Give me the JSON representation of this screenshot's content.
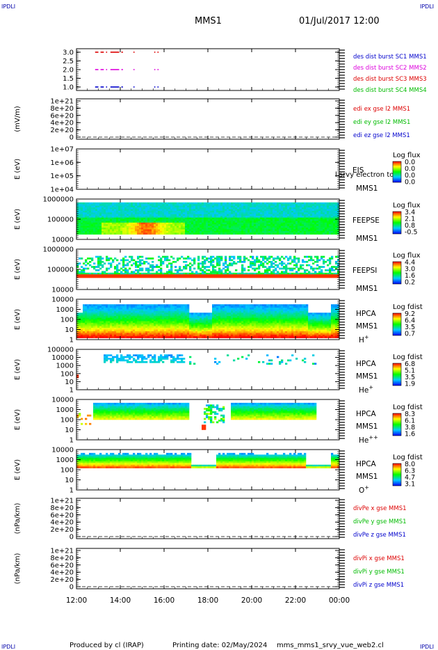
{
  "corner_label": "IPDLI",
  "header": {
    "mission": "MMS1",
    "datetime": "01/Jul/2017 12:00"
  },
  "footer": {
    "produced_by": "Produced by cl (IRAP)",
    "printing_date": "Printing date: 02/May/2024",
    "file": "mms_mms1_srvy_vue_web2.cl"
  },
  "colors": {
    "red": "#dd0000",
    "magenta": "#dd00dd",
    "green": "#00bb00",
    "blue": "#0000cc"
  },
  "chart_data": {
    "type": "multi-panel time series",
    "x": {
      "ticks": [
        "12:00",
        "14:00",
        "16:00",
        "18:00",
        "20:00",
        "22:00",
        "00:00"
      ],
      "range_hours": [
        12,
        24
      ]
    },
    "panels": [
      {
        "id": "burst",
        "kind": "flags",
        "ylabel": "",
        "yticks": [
          "3.0",
          "2.5",
          "2.0",
          "1.5",
          "1.0"
        ],
        "legend": [
          {
            "text": "des dist burst SC1 MMS1",
            "color": "blue"
          },
          {
            "text": "des dist burst SC2 MMS2",
            "color": "magenta"
          },
          {
            "text": "des dist burst SC3 MMS3",
            "color": "red"
          },
          {
            "text": "des dist burst SC4 MMS4",
            "color": "green"
          }
        ],
        "intervals_hours": [
          [
            12.85,
            13.0
          ],
          [
            13.1,
            13.25
          ],
          [
            13.35,
            13.4
          ],
          [
            13.55,
            13.95
          ],
          [
            14.05,
            14.12
          ],
          [
            14.6,
            14.65
          ],
          [
            15.55,
            15.6
          ],
          [
            15.7,
            15.75
          ]
        ],
        "levels": [
          {
            "y": 3.0,
            "color": "red"
          },
          {
            "y": 2.0,
            "color": "magenta"
          },
          {
            "y": 1.0,
            "color": "blue"
          }
        ]
      },
      {
        "id": "edi",
        "kind": "empty",
        "ylabel": "(mV/m)",
        "yticks": [
          "1e+21",
          "8e+20",
          "6e+20",
          "4e+20",
          "2e+20",
          "0"
        ],
        "legend": [
          {
            "text": "edi ex gse l2 MMS1",
            "color": "red"
          },
          {
            "text": "edi ey gse l2 MMS1",
            "color": "green"
          },
          {
            "text": "edi ez gse l2 MMS1",
            "color": "blue"
          }
        ]
      },
      {
        "id": "eis",
        "kind": "empty-spec",
        "ylabel": "E (eV)",
        "yticks": [
          "1e+07",
          "1e+06",
          "1e+05",
          "1e+04"
        ],
        "right": [
          "EIS",
          "MMS1"
        ],
        "note": "l srvy electron to",
        "cbar": {
          "title": "Log flux",
          "labels": [
            "0.0",
            "0.0",
            "0.0",
            "0.0"
          ]
        }
      },
      {
        "id": "feepse",
        "kind": "spec",
        "ylabel": "E (eV)",
        "yticks": [
          "1000000",
          "100000",
          "10000"
        ],
        "right": [
          "FEEPSE",
          "MMS1"
        ],
        "cbar": {
          "title": "Log flux",
          "labels": [
            "3.4",
            "2.1",
            "0.8",
            "-0.5"
          ]
        }
      },
      {
        "id": "feepsi",
        "kind": "spec",
        "ylabel": "E (eV)",
        "yticks": [
          "1000000",
          "100000",
          "10000"
        ],
        "right": [
          "FEEPSI",
          "MMS1"
        ],
        "cbar": {
          "title": "Log flux",
          "labels": [
            "4.4",
            "3.0",
            "1.6",
            "0.2"
          ]
        }
      },
      {
        "id": "hpca-h",
        "kind": "spec",
        "ylabel": "E (eV)",
        "yticks": [
          "10000",
          "1000",
          "100",
          "10",
          "1"
        ],
        "right": [
          "HPCA",
          "MMS1"
        ],
        "species": "H",
        "sup": "+",
        "cbar": {
          "title": "Log fdist",
          "labels": [
            "9.2",
            "6.4",
            "3.5",
            "0.7"
          ]
        }
      },
      {
        "id": "hpca-he",
        "kind": "spec",
        "ylabel": "E (eV)",
        "yticks": [
          "100000",
          "10000",
          "1000",
          "100",
          "10",
          "1"
        ],
        "right": [
          "HPCA",
          "MMS1"
        ],
        "species": "He",
        "sup": "+",
        "cbar": {
          "title": "Log fdist",
          "labels": [
            "6.8",
            "5.1",
            "3.5",
            "1.9"
          ]
        }
      },
      {
        "id": "hpca-hepp",
        "kind": "spec",
        "ylabel": "E (eV)",
        "yticks": [
          "10000",
          "1000",
          "100",
          "10",
          "1"
        ],
        "right": [
          "HPCA",
          "MMS1"
        ],
        "species": "He",
        "sup": "++",
        "cbar": {
          "title": "Log fdist",
          "labels": [
            "8.3",
            "6.1",
            "3.8",
            "1.6"
          ]
        }
      },
      {
        "id": "hpca-o",
        "kind": "spec",
        "ylabel": "E (eV)",
        "yticks": [
          "10000",
          "1000",
          "100",
          "10",
          "1"
        ],
        "right": [
          "HPCA",
          "MMS1"
        ],
        "species": "O",
        "sup": "+",
        "cbar": {
          "title": "Log fdist",
          "labels": [
            "8.0",
            "6.3",
            "4.7",
            "3.1"
          ]
        }
      },
      {
        "id": "divpe",
        "kind": "empty",
        "ylabel": "(nPa/km)",
        "yticks": [
          "1e+21",
          "8e+20",
          "6e+20",
          "4e+20",
          "2e+20",
          "0"
        ],
        "legend": [
          {
            "text": "divPe x gse MMS1",
            "color": "red"
          },
          {
            "text": "divPe y gse MMS1",
            "color": "green"
          },
          {
            "text": "divPe z gse MMS1",
            "color": "blue"
          }
        ]
      },
      {
        "id": "divpi",
        "kind": "empty",
        "ylabel": "(nPa/km)",
        "yticks": [
          "1e+21",
          "8e+20",
          "6e+20",
          "4e+20",
          "2e+20",
          "0"
        ],
        "legend": [
          {
            "text": "divPi x gse MMS1",
            "color": "red"
          },
          {
            "text": "divPi y gse MMS1",
            "color": "green"
          },
          {
            "text": "divPi z gse MMS1",
            "color": "blue"
          }
        ]
      }
    ]
  }
}
